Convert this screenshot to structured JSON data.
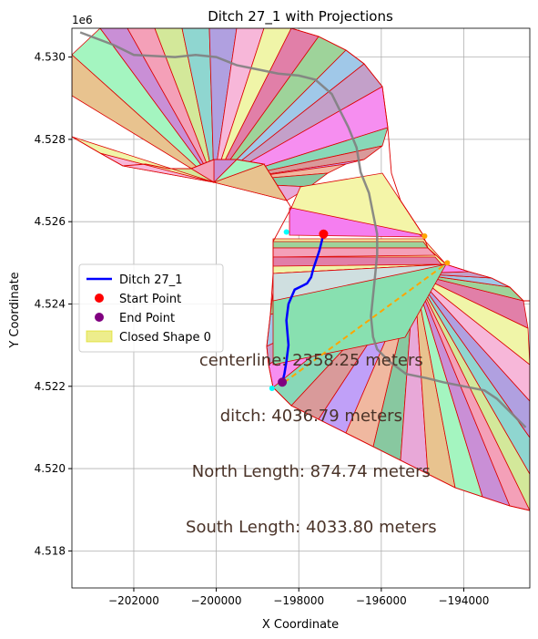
{
  "chart_data": {
    "type": "line",
    "title": "Ditch 27_1 with Projections",
    "xlabel": "X Coordinate",
    "ylabel": "Y Coordinate",
    "y_offset_label": "1e6",
    "xlim": [
      -203500,
      -192400
    ],
    "ylim": [
      4517100,
      4530700
    ],
    "grid": true,
    "x_ticks": [
      -202000,
      -200000,
      -198000,
      -196000,
      -194000
    ],
    "x_tick_labels": [
      "−202000",
      "−200000",
      "−198000",
      "−196000",
      "−194000"
    ],
    "y_ticks": [
      4518000,
      4520000,
      4522000,
      4524000,
      4526000,
      4528000,
      4530000
    ],
    "y_tick_labels": [
      "4.518",
      "4.520",
      "4.522",
      "4.524",
      "4.526",
      "4.528",
      "4.530"
    ],
    "legend": {
      "placement": "center-left",
      "entries": [
        {
          "label": "Ditch 27_1",
          "type": "line",
          "color": "#0000ff"
        },
        {
          "label": "Start Point",
          "type": "marker",
          "color": "#ff0000"
        },
        {
          "label": "End Point",
          "type": "marker",
          "color": "#800080"
        },
        {
          "label": "Closed Shape 0",
          "type": "patch",
          "color": "#d8d800"
        }
      ]
    },
    "series": [
      {
        "name": "Ditch 27_1",
        "color": "#0000ff",
        "x": [
          -197400,
          -197500,
          -197600,
          -197650,
          -197700,
          -197800,
          -197900,
          -198100,
          -198250,
          -198300,
          -198250,
          -198300,
          -198350,
          -198400
        ],
        "y": [
          4525700,
          4525300,
          4525000,
          4524850,
          4524650,
          4524500,
          4524450,
          4524350,
          4524000,
          4523600,
          4523000,
          4522600,
          4522300,
          4522100
        ]
      }
    ],
    "centerline": {
      "color": "#808080",
      "x": [
        -203300,
        -202500,
        -202000,
        -201000,
        -200500,
        -200000,
        -199500,
        -199000,
        -198500,
        -198000,
        -197600,
        -197200,
        -197000,
        -196800,
        -196600,
        -196500,
        -196300,
        -196200,
        -196100,
        -196100,
        -196150,
        -196200,
        -196250,
        -196200,
        -196100,
        -195800,
        -195400,
        -194900,
        -194500,
        -194000,
        -193500,
        -193200,
        -192800,
        -192500
      ],
      "y": [
        4530600,
        4530300,
        4530050,
        4530000,
        4530050,
        4530000,
        4529800,
        4529700,
        4529600,
        4529550,
        4529450,
        4529100,
        4528700,
        4528300,
        4527800,
        4527200,
        4526700,
        4526200,
        4525700,
        4525200,
        4524700,
        4524200,
        4523700,
        4523200,
        4522900,
        4522600,
        4522300,
        4522200,
        4522100,
        4522000,
        4521900,
        4521700,
        4521300,
        4521000
      ]
    },
    "projection_line": {
      "color": "#ffa500",
      "x": [
        -198350,
        -194400
      ],
      "y": [
        4522100,
        4525000
      ]
    },
    "points": [
      {
        "name": "Start Point",
        "x": -197400,
        "y": 4525700,
        "color": "#ff0000"
      },
      {
        "name": "End Point",
        "x": -198400,
        "y": 4522100,
        "color": "#800080"
      },
      {
        "x": -198650,
        "y": 4521950,
        "color": "#00ffff"
      },
      {
        "x": -198300,
        "y": 4525750,
        "color": "#00ffff"
      },
      {
        "x": -194950,
        "y": 4525650,
        "color": "#ffa500"
      },
      {
        "x": -194400,
        "y": 4525000,
        "color": "#ffa500"
      }
    ],
    "annotations": [
      {
        "text": "centerline: 2358.25 meters",
        "x": -197700,
        "y": 4522500
      },
      {
        "text": "ditch: 4036.79 meters",
        "x": -197700,
        "y": 4521150
      },
      {
        "text": "North Length: 874.74 meters",
        "x": -197700,
        "y": 4519800
      },
      {
        "text": "South Length: 4033.80 meters",
        "x": -197700,
        "y": 4518450
      }
    ]
  }
}
